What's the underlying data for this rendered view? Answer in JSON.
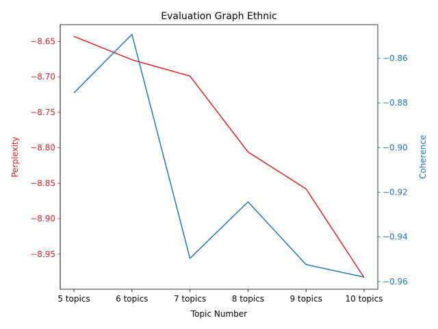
{
  "chart_data": {
    "type": "line",
    "title": "Evaluation Graph Ethnic",
    "xlabel": "Topic Number",
    "categories": [
      "5 topics",
      "6 topics",
      "7 topics",
      "8 topics",
      "9 topics",
      "10 topics"
    ],
    "series": [
      {
        "name": "Perplexity",
        "axis": "left",
        "color": "#d62728",
        "values": [
          -8.643,
          -8.676,
          -8.699,
          -8.806,
          -8.858,
          -8.983
        ]
      },
      {
        "name": "Coherence",
        "axis": "right",
        "color": "#1f77b4",
        "values": [
          -0.8755,
          -0.8493,
          -0.9496,
          -0.9243,
          -0.9524,
          -0.958
        ]
      }
    ],
    "y_left": {
      "label": "Perplexity",
      "color": "#d62728",
      "ylim": [
        -8.9995,
        -8.6265
      ],
      "ticks": [
        -8.65,
        -8.7,
        -8.75,
        -8.8,
        -8.85,
        -8.9,
        -8.95
      ],
      "tick_labels": [
        "−8.65",
        "−8.70",
        "−8.75",
        "−8.80",
        "−8.85",
        "−8.90",
        "−8.95"
      ]
    },
    "y_right": {
      "label": "Coherence",
      "color": "#1f77b4",
      "ylim": [
        -0.96344,
        -0.84496
      ],
      "ticks": [
        -0.86,
        -0.88,
        -0.9,
        -0.92,
        -0.94,
        -0.96
      ],
      "tick_labels": [
        "−0.86",
        "−0.88",
        "−0.90",
        "−0.92",
        "−0.94",
        "−0.96"
      ]
    },
    "grid": false,
    "legend": "none"
  }
}
